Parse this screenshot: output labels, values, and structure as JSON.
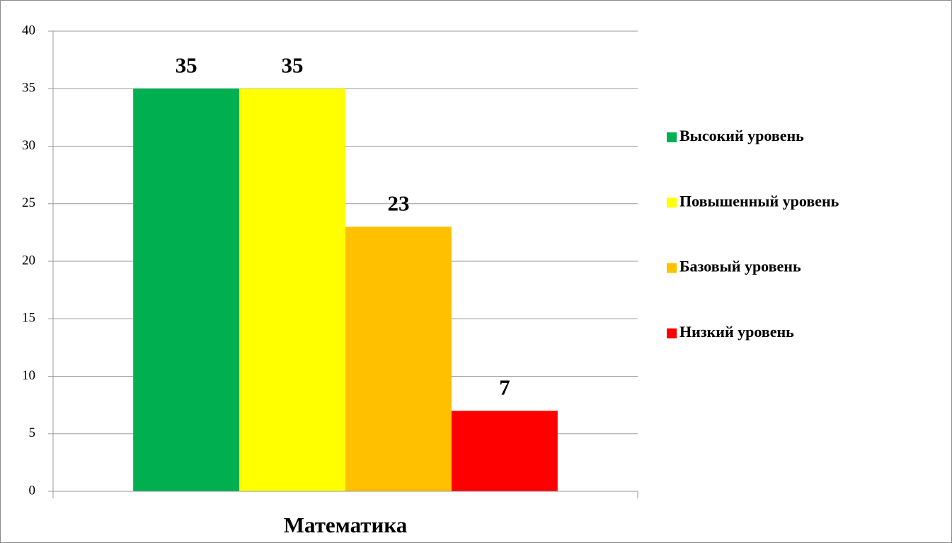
{
  "chart_data": {
    "type": "bar",
    "categories": [
      "Математика"
    ],
    "series": [
      {
        "name": "Высокий уровень",
        "color": "#00b050",
        "values": [
          35
        ]
      },
      {
        "name": "Повышенный уровень",
        "color": "#ffff00",
        "values": [
          35
        ]
      },
      {
        "name": "Базовый уровень",
        "color": "#ffc000",
        "values": [
          23
        ]
      },
      {
        "name": "Низкий уровень",
        "color": "#ff0000",
        "values": [
          7
        ]
      }
    ],
    "ylim": [
      0,
      40
    ],
    "yticks": [
      0,
      5,
      10,
      15,
      20,
      25,
      30,
      35,
      40
    ],
    "grid": true,
    "legend": "right"
  }
}
